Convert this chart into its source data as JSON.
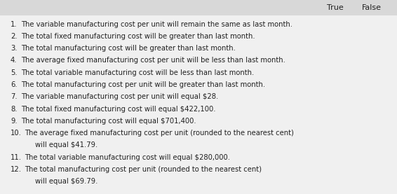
{
  "title_true": "True",
  "title_false": "False",
  "bg_color": "#f0f0f0",
  "header_bg": "#d8d8d8",
  "text_color": "#222222",
  "font_size": 7.2,
  "header_font_size": 8.0,
  "items": [
    {
      "num": "1.",
      "line1": "The variable manufacturing cost per unit will remain the same as last month.",
      "line2": null
    },
    {
      "num": "2.",
      "line1": "The total fixed manufacturing cost will be greater than last month.",
      "line2": null
    },
    {
      "num": "3.",
      "line1": "The total manufacturing cost will be greater than last month.",
      "line2": null
    },
    {
      "num": "4.",
      "line1": "The average fixed manufacturing cost per unit will be less than last month.",
      "line2": null
    },
    {
      "num": "5.",
      "line1": "The total variable manufacturing cost will be less than last month.",
      "line2": null
    },
    {
      "num": "6.",
      "line1": "The total manufacturing cost per unit will be greater than last month.",
      "line2": null
    },
    {
      "num": "7.",
      "line1": "The variable manufacturing cost per unit will equal $28.",
      "line2": null
    },
    {
      "num": "8.",
      "line1": "The total fixed manufacturing cost will equal $422,100.",
      "line2": null
    },
    {
      "num": "9.",
      "line1": "The total manufacturing cost will equal $701,400.",
      "line2": null
    },
    {
      "num": "10.",
      "line1": "The average fixed manufacturing cost per unit (rounded to the nearest cent)",
      "line2": "will equal $41.79."
    },
    {
      "num": "11.",
      "line1": "The total variable manufacturing cost will equal $280,000.",
      "line2": null
    },
    {
      "num": "12.",
      "line1": "The total manufacturing cost per unit (rounded to the nearest cent)",
      "line2": "will equal $69.79."
    }
  ],
  "fig_width": 5.66,
  "fig_height": 2.77,
  "dpi": 100
}
